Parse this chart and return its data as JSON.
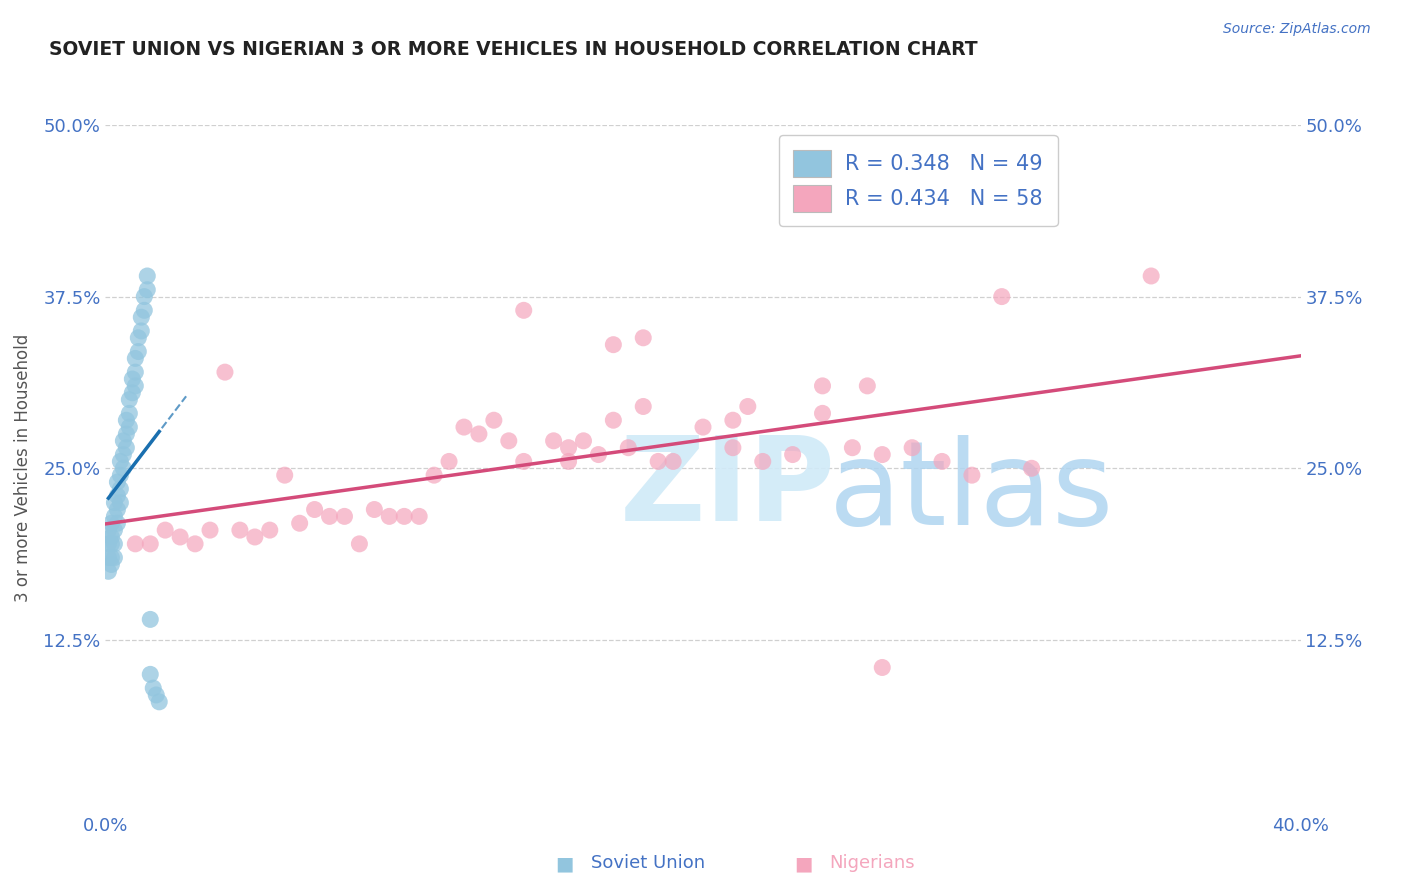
{
  "title": "SOVIET UNION VS NIGERIAN 3 OR MORE VEHICLES IN HOUSEHOLD CORRELATION CHART",
  "source": "Source: ZipAtlas.com",
  "ylabel": "3 or more Vehicles in Household",
  "label_blue": "Soviet Union",
  "label_pink": "Nigerians",
  "xlim": [
    0.0,
    0.4
  ],
  "ylim": [
    0.0,
    0.5
  ],
  "xtick_vals": [
    0.0,
    0.1,
    0.2,
    0.3,
    0.4
  ],
  "xtick_labels": [
    "0.0%",
    "",
    "",
    "",
    "40.0%"
  ],
  "ytick_vals": [
    0.125,
    0.25,
    0.375,
    0.5
  ],
  "ytick_labels": [
    "12.5%",
    "25.0%",
    "37.5%",
    "50.0%"
  ],
  "R_blue": 0.348,
  "N_blue": 49,
  "R_pink": 0.434,
  "N_pink": 58,
  "blue_color": "#92c5de",
  "pink_color": "#f4a6bd",
  "trendline_blue_solid": "#1a6faf",
  "trendline_pink": "#d44b7a",
  "grid_color": "#d0d0d0",
  "blue_scatter_x": [
    0.001,
    0.001,
    0.001,
    0.001,
    0.002,
    0.002,
    0.002,
    0.002,
    0.002,
    0.003,
    0.003,
    0.003,
    0.003,
    0.003,
    0.004,
    0.004,
    0.004,
    0.004,
    0.005,
    0.005,
    0.005,
    0.005,
    0.006,
    0.006,
    0.006,
    0.007,
    0.007,
    0.007,
    0.008,
    0.008,
    0.008,
    0.009,
    0.009,
    0.01,
    0.01,
    0.01,
    0.011,
    0.011,
    0.012,
    0.012,
    0.013,
    0.013,
    0.014,
    0.014,
    0.015,
    0.015,
    0.016,
    0.017,
    0.018
  ],
  "blue_scatter_y": [
    0.205,
    0.195,
    0.185,
    0.175,
    0.21,
    0.2,
    0.195,
    0.185,
    0.18,
    0.225,
    0.215,
    0.205,
    0.195,
    0.185,
    0.24,
    0.23,
    0.22,
    0.21,
    0.255,
    0.245,
    0.235,
    0.225,
    0.27,
    0.26,
    0.25,
    0.285,
    0.275,
    0.265,
    0.3,
    0.29,
    0.28,
    0.315,
    0.305,
    0.33,
    0.32,
    0.31,
    0.345,
    0.335,
    0.36,
    0.35,
    0.375,
    0.365,
    0.39,
    0.38,
    0.14,
    0.1,
    0.09,
    0.085,
    0.08
  ],
  "pink_scatter_x": [
    0.01,
    0.015,
    0.02,
    0.025,
    0.03,
    0.035,
    0.04,
    0.045,
    0.05,
    0.055,
    0.06,
    0.065,
    0.07,
    0.075,
    0.08,
    0.085,
    0.09,
    0.095,
    0.1,
    0.105,
    0.11,
    0.115,
    0.12,
    0.125,
    0.13,
    0.135,
    0.14,
    0.15,
    0.155,
    0.16,
    0.165,
    0.17,
    0.175,
    0.18,
    0.185,
    0.19,
    0.2,
    0.21,
    0.215,
    0.22,
    0.23,
    0.24,
    0.25,
    0.255,
    0.26,
    0.27,
    0.28,
    0.29,
    0.3,
    0.31,
    0.17,
    0.18,
    0.21,
    0.24,
    0.26,
    0.14,
    0.155,
    0.35
  ],
  "pink_scatter_y": [
    0.195,
    0.195,
    0.205,
    0.2,
    0.195,
    0.205,
    0.32,
    0.205,
    0.2,
    0.205,
    0.245,
    0.21,
    0.22,
    0.215,
    0.215,
    0.195,
    0.22,
    0.215,
    0.215,
    0.215,
    0.245,
    0.255,
    0.28,
    0.275,
    0.285,
    0.27,
    0.255,
    0.27,
    0.265,
    0.27,
    0.26,
    0.285,
    0.265,
    0.295,
    0.255,
    0.255,
    0.28,
    0.265,
    0.295,
    0.255,
    0.26,
    0.29,
    0.265,
    0.31,
    0.26,
    0.265,
    0.255,
    0.245,
    0.375,
    0.25,
    0.34,
    0.345,
    0.285,
    0.31,
    0.105,
    0.365,
    0.255,
    0.39
  ]
}
